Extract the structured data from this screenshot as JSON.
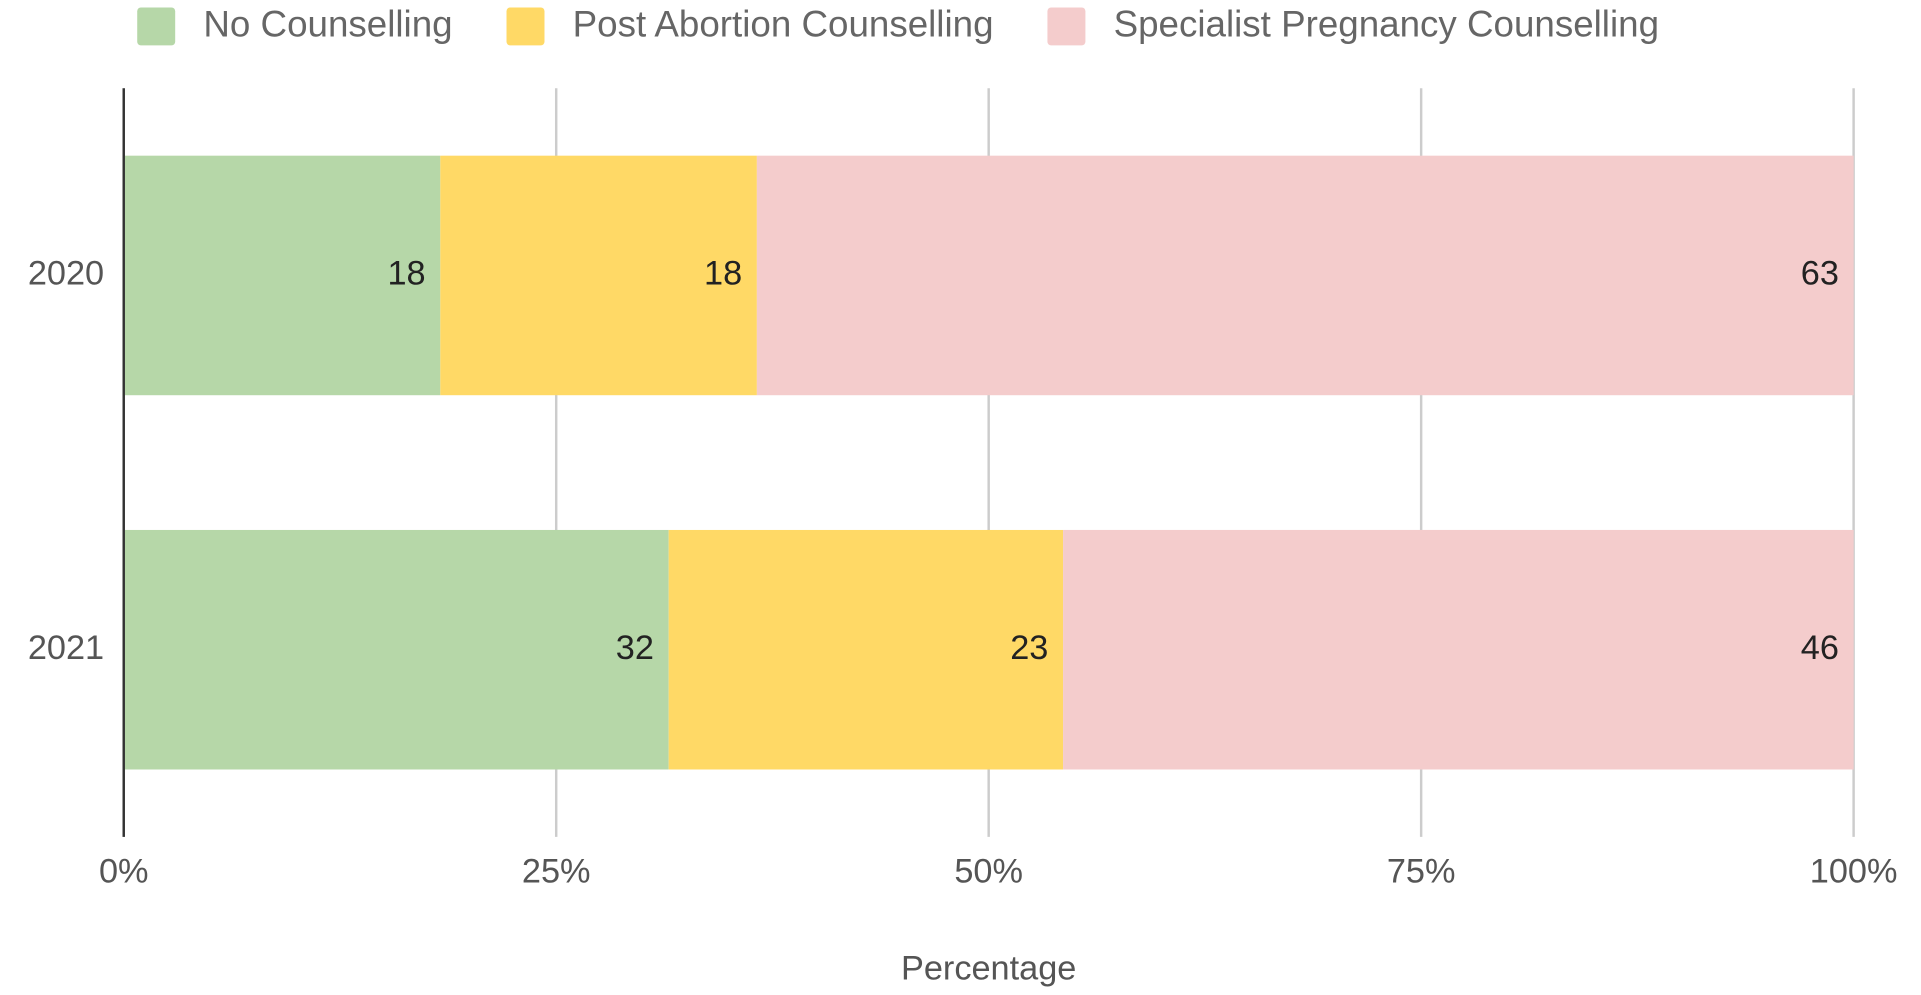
{
  "chart_data": {
    "type": "stacked_barh",
    "x_label": "Percentage",
    "categories": [
      "2020",
      "2021"
    ],
    "series": [
      {
        "name": "No Counselling",
        "color": "#b6d7a8",
        "values": [
          18.3,
          31.5
        ],
        "value_labels": [
          "18",
          "32"
        ]
      },
      {
        "name": "Post Abortion Counselling",
        "color": "#ffd966",
        "values": [
          18.3,
          22.8
        ],
        "value_labels": [
          "18",
          "23"
        ]
      },
      {
        "name": "Specialist Pregnancy Counselling",
        "color": "#f4cccc",
        "values": [
          63.4,
          45.7
        ],
        "value_labels": [
          "63",
          "46"
        ]
      }
    ],
    "xlim": [
      0,
      100
    ],
    "xticks": [
      {
        "value": 0,
        "label": "0%"
      },
      {
        "value": 25,
        "label": "25%"
      },
      {
        "value": 50,
        "label": "50%"
      },
      {
        "value": 75,
        "label": "75%"
      },
      {
        "value": 100,
        "label": "100%"
      }
    ],
    "grid": true,
    "legend": "top"
  }
}
